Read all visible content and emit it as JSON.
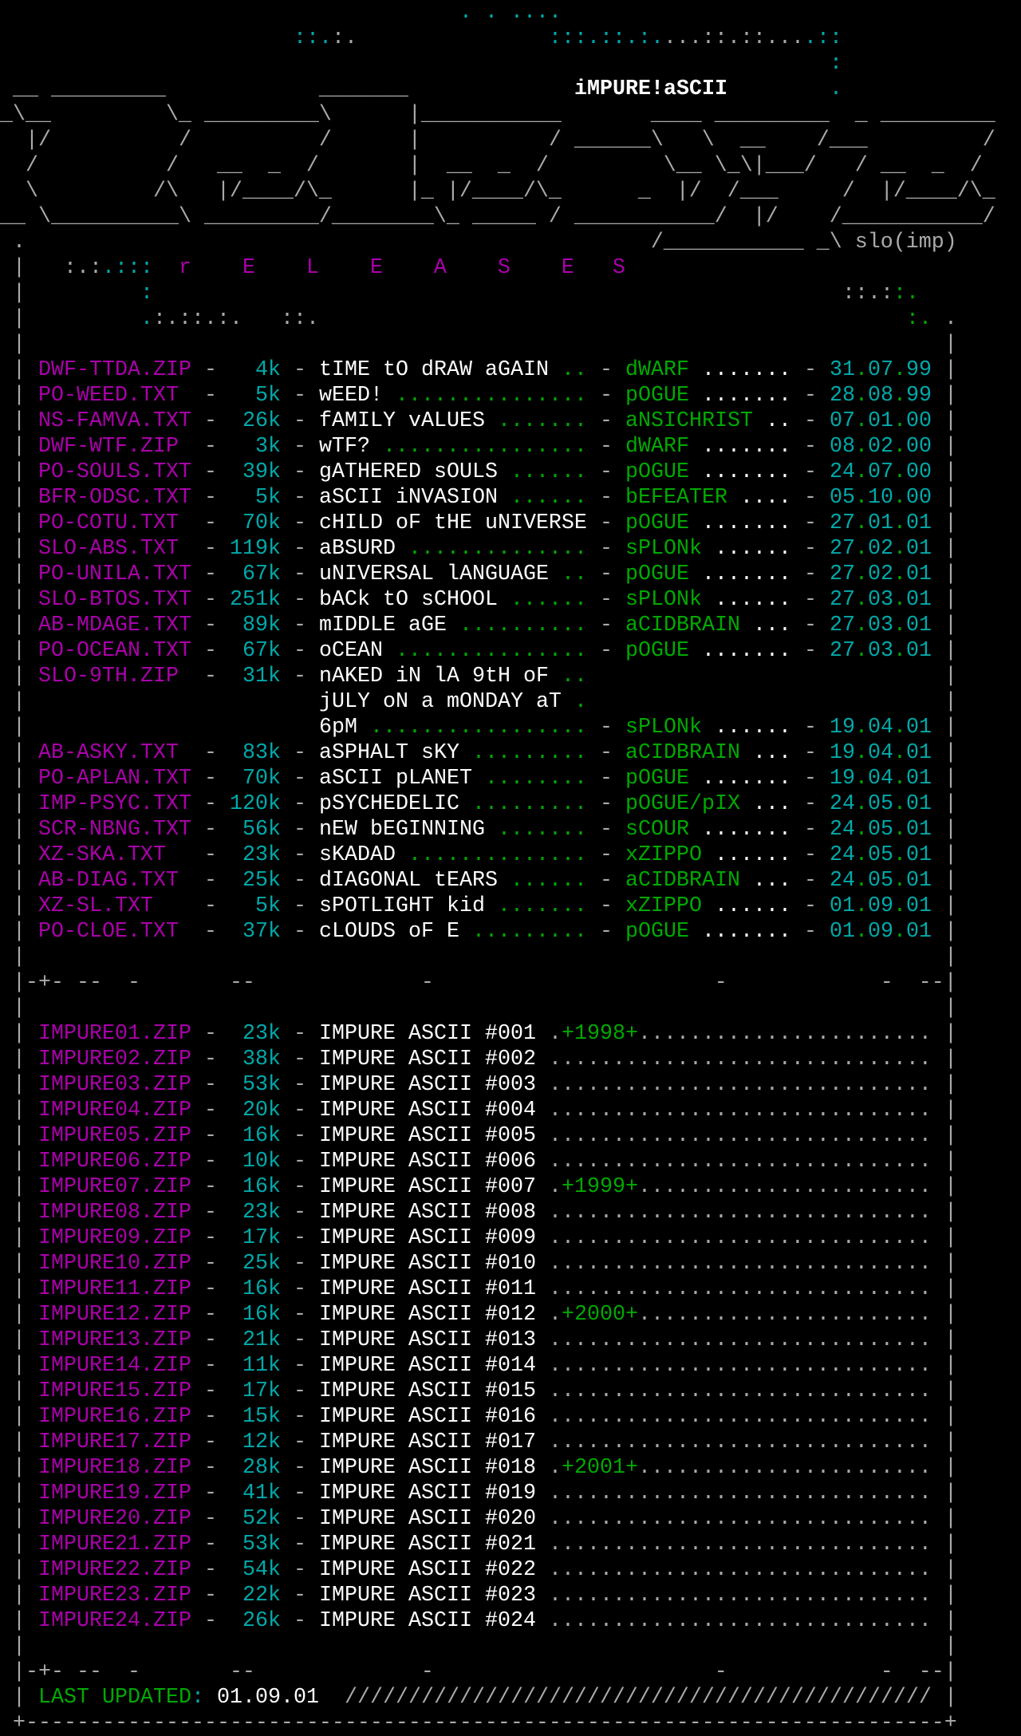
{
  "colors": {
    "background": "#000000",
    "gray": "#aaaaaa",
    "magenta": "#aa00aa",
    "cyan": "#00aaaa",
    "green": "#00aa00",
    "white": "#ffffff"
  },
  "header": {
    "group_name": "iMPURE!aSCII",
    "dots": {
      "row0": ". . ....",
      "row1_a": "::.",
      "row1_b": ":.",
      "row1_c": ":::.::.:.",
      "row1_d": "...::.::...",
      "row1_e": ".::",
      "row2": ":",
      "row3": "."
    },
    "logo_lines": [
      " __ _________            _______",
      "_\\__         \\_ _________\\      |___________       ____ _________  _ _________",
      "  |/          /          /      |          / ______\\   \\  __    /___         /",
      "  /          /   __  _  /       |  __  _  /         \\__ \\_\\|___/   / __  _  /",
      "  \\         /\\   |/____/\\_      |_ |/____/\\_      _  |/  /___     /  |/____/\\_",
      "__ \\__________\\ _________/________\\_ _____ / ___________/  |/    /___________/",
      " .                                                 /___________ _\\ slo(imp)"
    ]
  },
  "section_header": {
    "decor_left_gray": ":.:",
    "decor_left_cyan": ".:::",
    "title": "r    E    L    E    A    S    E   S",
    "decor_row11_left": ":",
    "decor_row11_right_gray": "::.:",
    "decor_row11_right_green": ":.",
    "decor_row12_left_cyan": ".",
    "decor_row12_left_gray": ":.::.:.",
    "decor_row12_mid": "::.",
    "decor_row12_right_green": ":.",
    "decor_row12_right_gray": "."
  },
  "frame": {
    "border": "|",
    "separator": "|-+- --  -       --             -                      -            -  --|",
    "dash": "-"
  },
  "releases": [
    {
      "file": "DWF-TTDA.ZIP",
      "size": "4k",
      "title": [
        "tIME tO dRAW aGAIN"
      ],
      "author": "dWARF",
      "date": "31.07.99"
    },
    {
      "file": "PO-WEED.TXT",
      "size": "5k",
      "title": [
        "wEED!"
      ],
      "author": "pOGUE",
      "date": "28.08.99"
    },
    {
      "file": "NS-FAMVA.TXT",
      "size": "26k",
      "title": [
        "fAMILY vALUES"
      ],
      "author": "aNSICHRIST",
      "date": "07.01.00"
    },
    {
      "file": "DWF-WTF.ZIP",
      "size": "3k",
      "title": [
        "wTF?"
      ],
      "author": "dWARF",
      "date": "08.02.00"
    },
    {
      "file": "PO-SOULS.TXT",
      "size": "39k",
      "title": [
        "gATHERED sOULS"
      ],
      "author": "pOGUE",
      "date": "24.07.00"
    },
    {
      "file": "BFR-ODSC.TXT",
      "size": "5k",
      "title": [
        "aSCII iNVASION"
      ],
      "author": "bEFEATER",
      "date": "05.10.00"
    },
    {
      "file": "PO-COTU.TXT",
      "size": "70k",
      "title": [
        "cHILD oF tHE uNIVERSE"
      ],
      "author": "pOGUE",
      "date": "27.01.01"
    },
    {
      "file": "SLO-ABS.TXT",
      "size": "119k",
      "title": [
        "aBSURD"
      ],
      "author": "sPLONk",
      "date": "27.02.01"
    },
    {
      "file": "PO-UNILA.TXT",
      "size": "67k",
      "title": [
        "uNIVERSAL lANGUAGE"
      ],
      "author": "pOGUE",
      "date": "27.02.01"
    },
    {
      "file": "SLO-BTOS.TXT",
      "size": "251k",
      "title": [
        "bACk tO sCHOOL"
      ],
      "author": "sPLONk",
      "date": "27.03.01"
    },
    {
      "file": "AB-MDAGE.TXT",
      "size": "89k",
      "title": [
        "mIDDLE aGE"
      ],
      "author": "aCIDBRAIN",
      "date": "27.03.01"
    },
    {
      "file": "PO-OCEAN.TXT",
      "size": "67k",
      "title": [
        "oCEAN"
      ],
      "author": "pOGUE",
      "date": "27.03.01"
    },
    {
      "file": "SLO-9TH.ZIP",
      "size": "31k",
      "title": [
        "nAKED iN lA 9tH oF",
        "jULY oN a mONDAY aT",
        "6pM"
      ],
      "author": "sPLONk",
      "date": "19.04.01"
    },
    {
      "file": "AB-ASKY.TXT",
      "size": "83k",
      "title": [
        "aSPHALT sKY"
      ],
      "author": "aCIDBRAIN",
      "date": "19.04.01"
    },
    {
      "file": "PO-APLAN.TXT",
      "size": "70k",
      "title": [
        "aSCII pLANET"
      ],
      "author": "pOGUE",
      "date": "19.04.01"
    },
    {
      "file": "IMP-PSYC.TXT",
      "size": "120k",
      "title": [
        "pSYCHEDELIC"
      ],
      "author": "pOGUE/pIX",
      "date": "24.05.01"
    },
    {
      "file": "SCR-NBNG.TXT",
      "size": "56k",
      "title": [
        "nEW bEGINNING"
      ],
      "author": "sCOUR",
      "date": "24.05.01"
    },
    {
      "file": "XZ-SKA.TXT",
      "size": "23k",
      "title": [
        "sKADAD"
      ],
      "author": "xZIPPO",
      "date": "24.05.01"
    },
    {
      "file": "AB-DIAG.TXT",
      "size": "25k",
      "title": [
        "dIAGONAL tEARS"
      ],
      "author": "aCIDBRAIN",
      "date": "24.05.01"
    },
    {
      "file": "XZ-SL.TXT",
      "size": "5k",
      "title": [
        "sPOTLIGHT kid"
      ],
      "author": "xZIPPO",
      "date": "01.09.01"
    },
    {
      "file": "PO-CLOE.TXT",
      "size": "37k",
      "title": [
        "cLOUDS oF E"
      ],
      "author": "pOGUE",
      "date": "01.09.01"
    }
  ],
  "packs": [
    {
      "file": "IMPURE01.ZIP",
      "size": "23k",
      "title": "IMPURE ASCII #001",
      "year": "+1998+"
    },
    {
      "file": "IMPURE02.ZIP",
      "size": "38k",
      "title": "IMPURE ASCII #002"
    },
    {
      "file": "IMPURE03.ZIP",
      "size": "53k",
      "title": "IMPURE ASCII #003"
    },
    {
      "file": "IMPURE04.ZIP",
      "size": "20k",
      "title": "IMPURE ASCII #004"
    },
    {
      "file": "IMPURE05.ZIP",
      "size": "16k",
      "title": "IMPURE ASCII #005"
    },
    {
      "file": "IMPURE06.ZIP",
      "size": "10k",
      "title": "IMPURE ASCII #006"
    },
    {
      "file": "IMPURE07.ZIP",
      "size": "16k",
      "title": "IMPURE ASCII #007",
      "year": "+1999+"
    },
    {
      "file": "IMPURE08.ZIP",
      "size": "23k",
      "title": "IMPURE ASCII #008"
    },
    {
      "file": "IMPURE09.ZIP",
      "size": "17k",
      "title": "IMPURE ASCII #009"
    },
    {
      "file": "IMPURE10.ZIP",
      "size": "25k",
      "title": "IMPURE ASCII #010"
    },
    {
      "file": "IMPURE11.ZIP",
      "size": "16k",
      "title": "IMPURE ASCII #011"
    },
    {
      "file": "IMPURE12.ZIP",
      "size": "16k",
      "title": "IMPURE ASCII #012",
      "year": "+2000+"
    },
    {
      "file": "IMPURE13.ZIP",
      "size": "21k",
      "title": "IMPURE ASCII #013"
    },
    {
      "file": "IMPURE14.ZIP",
      "size": "11k",
      "title": "IMPURE ASCII #014"
    },
    {
      "file": "IMPURE15.ZIP",
      "size": "17k",
      "title": "IMPURE ASCII #015"
    },
    {
      "file": "IMPURE16.ZIP",
      "size": "15k",
      "title": "IMPURE ASCII #016"
    },
    {
      "file": "IMPURE17.ZIP",
      "size": "12k",
      "title": "IMPURE ASCII #017"
    },
    {
      "file": "IMPURE18.ZIP",
      "size": "28k",
      "title": "IMPURE ASCII #018",
      "year": "+2001+"
    },
    {
      "file": "IMPURE19.ZIP",
      "size": "41k",
      "title": "IMPURE ASCII #019"
    },
    {
      "file": "IMPURE20.ZIP",
      "size": "52k",
      "title": "IMPURE ASCII #020"
    },
    {
      "file": "IMPURE21.ZIP",
      "size": "53k",
      "title": "IMPURE ASCII #021"
    },
    {
      "file": "IMPURE22.ZIP",
      "size": "54k",
      "title": "IMPURE ASCII #022"
    },
    {
      "file": "IMPURE23.ZIP",
      "size": "22k",
      "title": "IMPURE ASCII #023"
    },
    {
      "file": "IMPURE24.ZIP",
      "size": "26k",
      "title": "IMPURE ASCII #024"
    }
  ],
  "footer": {
    "label": "LAST UPDATED",
    "colon": ":",
    "date": "01.09.01"
  }
}
